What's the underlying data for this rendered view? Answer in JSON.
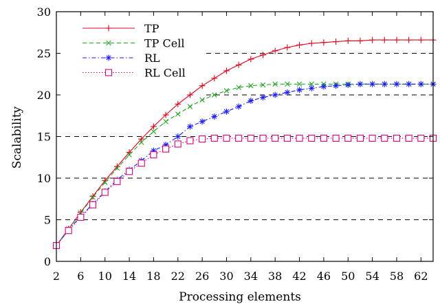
{
  "chart_data": {
    "type": "line",
    "title": "",
    "xlabel": "Processing elements",
    "ylabel": "Scalability",
    "xlim": [
      2,
      64
    ],
    "ylim": [
      0,
      30
    ],
    "xticks": [
      2,
      6,
      10,
      14,
      18,
      22,
      26,
      30,
      34,
      38,
      42,
      46,
      50,
      54,
      58,
      62
    ],
    "yticks": [
      0,
      5,
      10,
      15,
      20,
      25,
      30
    ],
    "grid": "horizontal dashed",
    "legend_position": "top-left",
    "x": [
      2,
      4,
      6,
      8,
      10,
      12,
      14,
      16,
      18,
      20,
      22,
      24,
      26,
      28,
      30,
      32,
      34,
      36,
      38,
      40,
      42,
      44,
      46,
      48,
      50,
      52,
      54,
      56,
      58,
      60,
      62,
      64
    ],
    "series": [
      {
        "name": "TP",
        "marker": "plus",
        "dash": "solid",
        "color": "#e0001b",
        "values": [
          1.9,
          3.9,
          5.9,
          7.8,
          9.7,
          11.4,
          13.1,
          14.7,
          16.2,
          17.6,
          18.9,
          20.0,
          21.1,
          22.0,
          22.9,
          23.6,
          24.3,
          24.8,
          25.3,
          25.7,
          26.0,
          26.2,
          26.3,
          26.4,
          26.5,
          26.5,
          26.6,
          26.6,
          26.6,
          26.6,
          26.6,
          26.6
        ]
      },
      {
        "name": "TP Cell",
        "marker": "x",
        "dash": "dashed",
        "color": "#22a322",
        "values": [
          1.9,
          3.9,
          5.8,
          7.7,
          9.5,
          11.2,
          12.8,
          14.3,
          15.6,
          16.8,
          17.7,
          18.6,
          19.4,
          20.0,
          20.5,
          20.9,
          21.1,
          21.2,
          21.3,
          21.3,
          21.3,
          21.3,
          21.3,
          21.3,
          21.3,
          21.3,
          21.3,
          21.3,
          21.3,
          21.3,
          21.3,
          21.3
        ]
      },
      {
        "name": "RL",
        "marker": "star",
        "dash": "dashdot",
        "color": "#1a1aff",
        "values": [
          1.9,
          3.8,
          5.4,
          6.9,
          8.4,
          9.8,
          11.0,
          12.1,
          13.3,
          14.0,
          15.0,
          16.2,
          16.8,
          17.4,
          18.0,
          18.6,
          19.3,
          19.7,
          20.0,
          20.3,
          20.6,
          20.8,
          21.0,
          21.1,
          21.2,
          21.3,
          21.3,
          21.3,
          21.3,
          21.3,
          21.3,
          21.3
        ]
      },
      {
        "name": "RL Cell",
        "marker": "square",
        "dash": "dotted",
        "color": "#d6007f",
        "values": [
          1.9,
          3.7,
          5.3,
          6.8,
          8.3,
          9.6,
          10.8,
          11.8,
          12.8,
          13.5,
          14.1,
          14.5,
          14.7,
          14.8,
          14.8,
          14.8,
          14.8,
          14.8,
          14.8,
          14.8,
          14.8,
          14.8,
          14.8,
          14.8,
          14.8,
          14.8,
          14.8,
          14.8,
          14.8,
          14.8,
          14.8,
          14.8
        ]
      }
    ]
  }
}
